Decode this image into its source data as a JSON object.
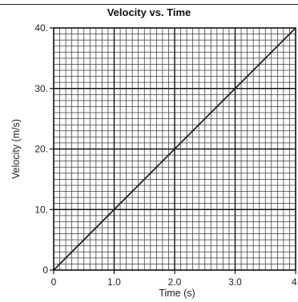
{
  "chart_data": {
    "type": "line",
    "title": "Velocity vs. Time",
    "xlabel": "Time (s)",
    "ylabel": "Velocity (m/s)",
    "xlim": [
      0,
      4.0
    ],
    "ylim": [
      0,
      40.0
    ],
    "x_tick_values": [
      0,
      1.0,
      2.0,
      3.0,
      4.0
    ],
    "x_tick_labels": [
      "0",
      "1.0",
      "2.0",
      "3.0",
      "4."
    ],
    "y_tick_values": [
      0,
      10.0,
      20.0,
      30.0,
      40.0
    ],
    "y_tick_labels": [
      "0",
      "10.",
      "20.",
      "30.",
      "40."
    ],
    "grid": true,
    "grid_minor_per_major": 10,
    "line_color": "#222222",
    "series": [
      {
        "x": [
          0,
          4.0
        ],
        "y": [
          0,
          40.0
        ]
      }
    ]
  }
}
